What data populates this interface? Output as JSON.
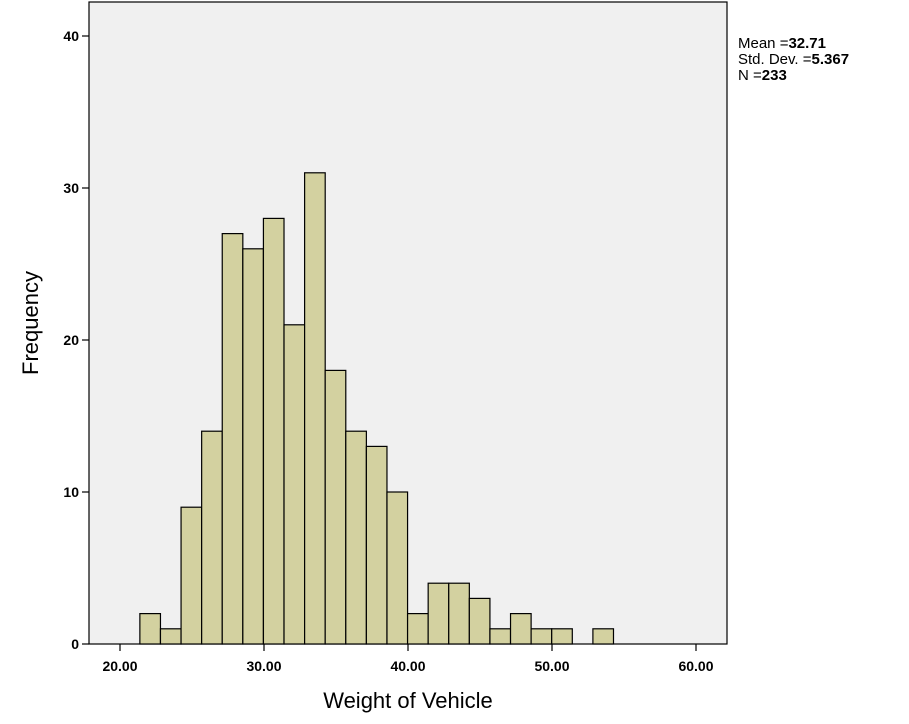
{
  "chart_data": {
    "type": "bar",
    "xlabel": "Weight of Vehicle",
    "ylabel": "Frequency",
    "xlim": [
      17,
      61
    ],
    "ylim": [
      0,
      42
    ],
    "x_ticks": [
      20,
      30,
      40,
      50,
      60
    ],
    "x_tick_labels": [
      "20.00",
      "30.00",
      "40.00",
      "50.00",
      "60.00"
    ],
    "y_ticks": [
      0,
      10,
      20,
      30,
      40
    ],
    "y_tick_labels": [
      "0",
      "10",
      "20",
      "30",
      "40"
    ],
    "bin_width": 1.43,
    "bin_starts": [
      21.38,
      22.81,
      24.24,
      25.67,
      27.1,
      28.53,
      29.96,
      31.39,
      32.82,
      34.25,
      35.68,
      37.11,
      38.54,
      39.97,
      41.4,
      42.83,
      44.26,
      45.69,
      47.12,
      48.55,
      49.98,
      51.41,
      52.84
    ],
    "values": [
      2,
      1,
      9,
      14,
      27,
      26,
      28,
      21,
      31,
      18,
      14,
      13,
      10,
      2,
      4,
      4,
      3,
      1,
      2,
      1,
      1,
      0,
      1
    ],
    "bar_color": "#d3d1a0",
    "plot_background": "#f0f0f0",
    "grid": false,
    "stats": {
      "mean_label": "Mean =",
      "mean_value": "32.71",
      "sd_label": "Std. Dev. =",
      "sd_value": "5.367",
      "n_label": "N =",
      "n_value": "233"
    }
  }
}
